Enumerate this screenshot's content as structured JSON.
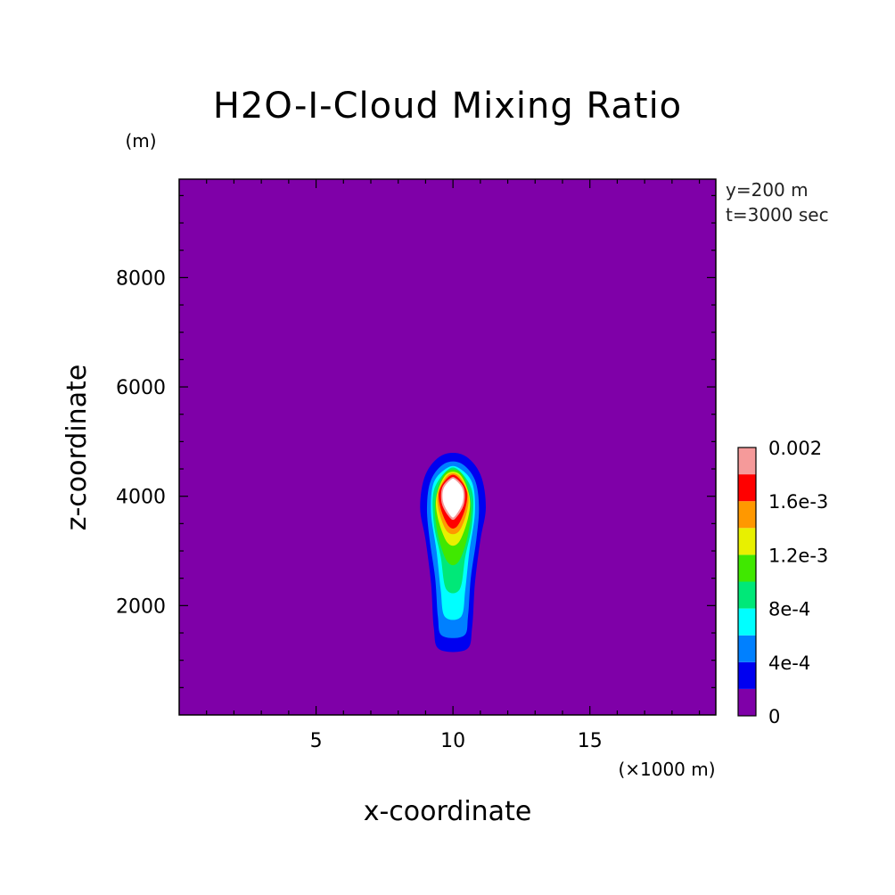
{
  "chart_data": {
    "type": "heatmap",
    "title": "H2O-I-Cloud Mixing Ratio",
    "xlabel": "x-coordinate",
    "ylabel": "z-coordinate",
    "x_unit": "(×1000 m)",
    "y_unit": "(m)",
    "xlim": [
      0,
      19.6
    ],
    "ylim": [
      0,
      9800
    ],
    "x_ticks": [
      5,
      10,
      15
    ],
    "y_ticks": [
      2000,
      4000,
      6000,
      8000
    ],
    "annotations": [
      "y=200 m",
      "t=3000 sec"
    ],
    "background_color": "#7f00a8",
    "colorbar": {
      "levels": [
        0,
        0.0002,
        0.0004,
        0.0006,
        0.0008,
        0.001,
        0.0012,
        0.0014,
        0.0016,
        0.0018,
        0.002
      ],
      "colors": [
        "#7f00a8",
        "#0000f0",
        "#0080ff",
        "#00ffff",
        "#00e878",
        "#40e800",
        "#e8f000",
        "#ff9800",
        "#ff0000",
        "#f59a9a"
      ],
      "labels": [
        {
          "value": 0,
          "text": "0"
        },
        {
          "value": 0.0004,
          "text": "4e-4"
        },
        {
          "value": 0.0008,
          "text": "8e-4"
        },
        {
          "value": 0.0012,
          "text": "1.2e-3"
        },
        {
          "value": 0.0016,
          "text": "1.6e-3"
        },
        {
          "value": 0.002,
          "text": "0.002"
        }
      ]
    },
    "contours": [
      {
        "level": 0.0002,
        "color": "#0000f0",
        "x_center": 10.0,
        "points": [
          [
            9.5,
            1200
          ],
          [
            10.5,
            1200
          ],
          [
            10.7,
            1600
          ],
          [
            10.8,
            2400
          ],
          [
            11.0,
            3200
          ],
          [
            11.2,
            3800
          ],
          [
            11.0,
            4400
          ],
          [
            10.4,
            4750
          ],
          [
            9.6,
            4750
          ],
          [
            9.0,
            4400
          ],
          [
            8.8,
            3800
          ],
          [
            9.0,
            3200
          ],
          [
            9.2,
            2400
          ],
          [
            9.3,
            1600
          ]
        ]
      },
      {
        "level": 0.0004,
        "color": "#0080ff",
        "points": [
          [
            9.6,
            1450
          ],
          [
            10.4,
            1450
          ],
          [
            10.55,
            1800
          ],
          [
            10.65,
            2500
          ],
          [
            10.85,
            3200
          ],
          [
            10.95,
            3800
          ],
          [
            10.8,
            4300
          ],
          [
            10.3,
            4600
          ],
          [
            9.7,
            4600
          ],
          [
            9.2,
            4300
          ],
          [
            9.05,
            3800
          ],
          [
            9.15,
            3200
          ],
          [
            9.35,
            2500
          ],
          [
            9.45,
            1800
          ]
        ]
      },
      {
        "level": 0.0006,
        "color": "#00ffff",
        "points": [
          [
            9.7,
            1800
          ],
          [
            10.3,
            1800
          ],
          [
            10.45,
            2300
          ],
          [
            10.6,
            3000
          ],
          [
            10.8,
            3700
          ],
          [
            10.7,
            4250
          ],
          [
            10.2,
            4520
          ],
          [
            9.8,
            4520
          ],
          [
            9.3,
            4250
          ],
          [
            9.2,
            3700
          ],
          [
            9.4,
            3000
          ],
          [
            9.55,
            2300
          ]
        ]
      },
      {
        "level": 0.0008,
        "color": "#00e878",
        "points": [
          [
            9.75,
            2300
          ],
          [
            10.25,
            2300
          ],
          [
            10.45,
            2900
          ],
          [
            10.7,
            3500
          ],
          [
            10.7,
            4100
          ],
          [
            10.2,
            4480
          ],
          [
            9.8,
            4480
          ],
          [
            9.3,
            4100
          ],
          [
            9.3,
            3500
          ],
          [
            9.55,
            2900
          ]
        ]
      },
      {
        "level": 0.001,
        "color": "#40e800",
        "points": [
          [
            9.8,
            2800
          ],
          [
            10.2,
            2800
          ],
          [
            10.55,
            3300
          ],
          [
            10.65,
            3900
          ],
          [
            10.3,
            4420
          ],
          [
            9.7,
            4420
          ],
          [
            9.35,
            3900
          ],
          [
            9.45,
            3300
          ]
        ]
      },
      {
        "level": 0.0012,
        "color": "#e8f000",
        "points": [
          [
            9.8,
            3150
          ],
          [
            10.2,
            3150
          ],
          [
            10.55,
            3600
          ],
          [
            10.6,
            4000
          ],
          [
            10.25,
            4400
          ],
          [
            9.75,
            4400
          ],
          [
            9.4,
            4000
          ],
          [
            9.45,
            3600
          ]
        ]
      },
      {
        "level": 0.0014,
        "color": "#ff9800",
        "points": [
          [
            9.8,
            3350
          ],
          [
            10.2,
            3350
          ],
          [
            10.5,
            3700
          ],
          [
            10.55,
            4050
          ],
          [
            10.2,
            4380
          ],
          [
            9.8,
            4380
          ],
          [
            9.45,
            4050
          ],
          [
            9.5,
            3700
          ]
        ]
      },
      {
        "level": 0.0016,
        "color": "#ff0000",
        "points": [
          [
            9.85,
            3450
          ],
          [
            10.15,
            3450
          ],
          [
            10.45,
            3780
          ],
          [
            10.5,
            4100
          ],
          [
            10.15,
            4360
          ],
          [
            9.85,
            4360
          ],
          [
            9.5,
            4100
          ],
          [
            9.55,
            3780
          ]
        ]
      },
      {
        "level": 0.0018,
        "color": "#f59a9a",
        "points": [
          [
            9.9,
            3600
          ],
          [
            10.1,
            3600
          ],
          [
            10.4,
            3850
          ],
          [
            10.4,
            4150
          ],
          [
            10.1,
            4330
          ],
          [
            9.9,
            4330
          ],
          [
            9.6,
            4150
          ],
          [
            9.6,
            3850
          ]
        ]
      },
      {
        "level": 0.002,
        "color": "#ffffff",
        "points": [
          [
            9.92,
            3640
          ],
          [
            10.08,
            3640
          ],
          [
            10.35,
            3880
          ],
          [
            10.35,
            4130
          ],
          [
            10.08,
            4300
          ],
          [
            9.92,
            4300
          ],
          [
            9.65,
            4130
          ],
          [
            9.65,
            3880
          ]
        ]
      }
    ]
  }
}
